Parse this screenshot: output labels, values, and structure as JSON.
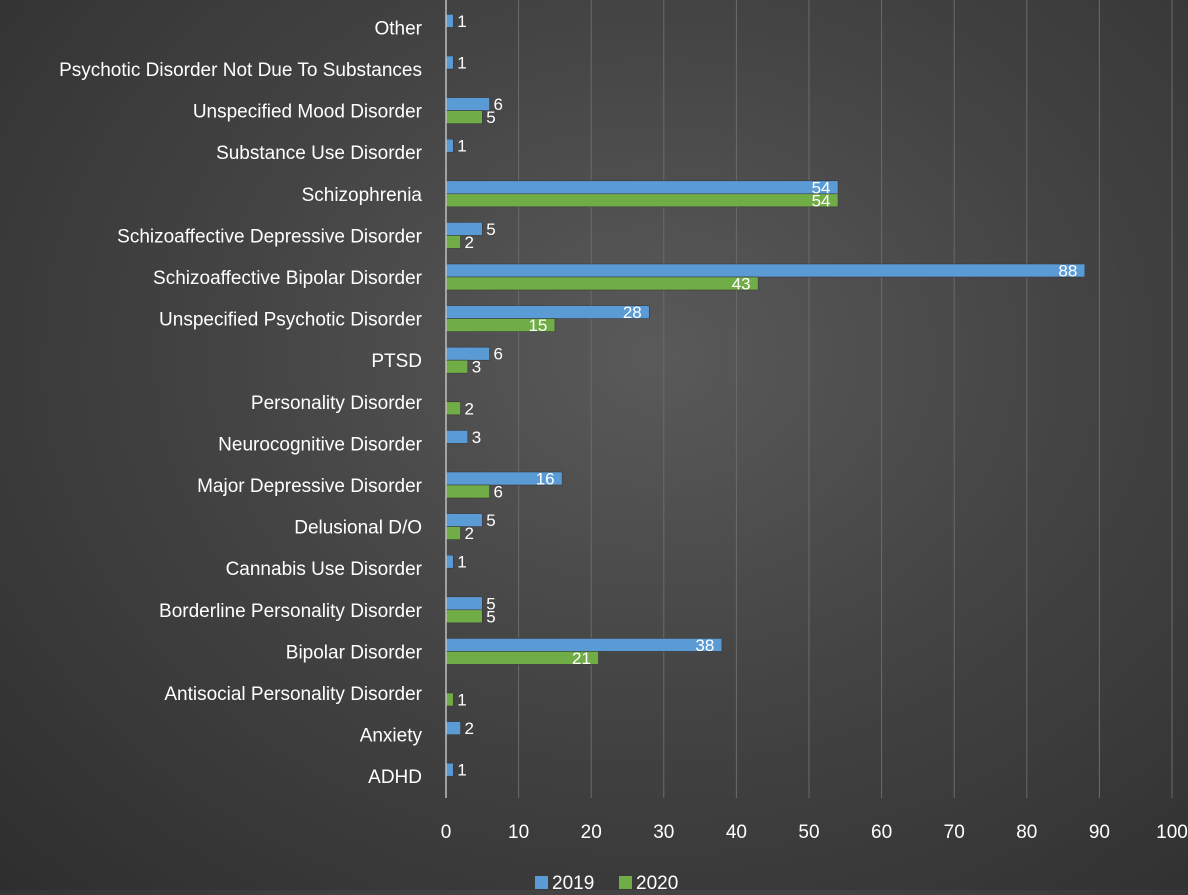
{
  "chart_data": {
    "type": "bar",
    "orientation": "horizontal",
    "categories": [
      "ADHD",
      "Anxiety",
      "Antisocial Personality Disorder",
      "Bipolar Disorder",
      "Borderline Personality Disorder",
      "Cannabis Use Disorder",
      "Delusional D/O",
      "Major Depressive Disorder",
      "Neurocognitive Disorder",
      "Personality Disorder",
      "PTSD",
      "Unspecified Psychotic Disorder",
      "Schizoaffective Bipolar Disorder",
      "Schizoaffective Depressive Disorder",
      "Schizophrenia",
      "Substance Use Disorder",
      "Unspecified  Mood Disorder",
      "Psychotic Disorder Not Due To Substances",
      "Other"
    ],
    "series": [
      {
        "name": "2019",
        "color": "#5b9bd5",
        "values": [
          1,
          2,
          null,
          38,
          5,
          1,
          5,
          16,
          3,
          null,
          6,
          28,
          88,
          5,
          54,
          1,
          6,
          1,
          1
        ]
      },
      {
        "name": "2020",
        "color": "#70ad47",
        "values": [
          null,
          null,
          1,
          21,
          5,
          null,
          2,
          6,
          null,
          2,
          3,
          15,
          43,
          2,
          54,
          null,
          5,
          null,
          null
        ]
      }
    ],
    "xlim": [
      0,
      100
    ],
    "x_ticks": [
      0,
      10,
      20,
      30,
      40,
      50,
      60,
      70,
      80,
      90,
      100
    ],
    "grid": true,
    "legend_position": "bottom"
  }
}
